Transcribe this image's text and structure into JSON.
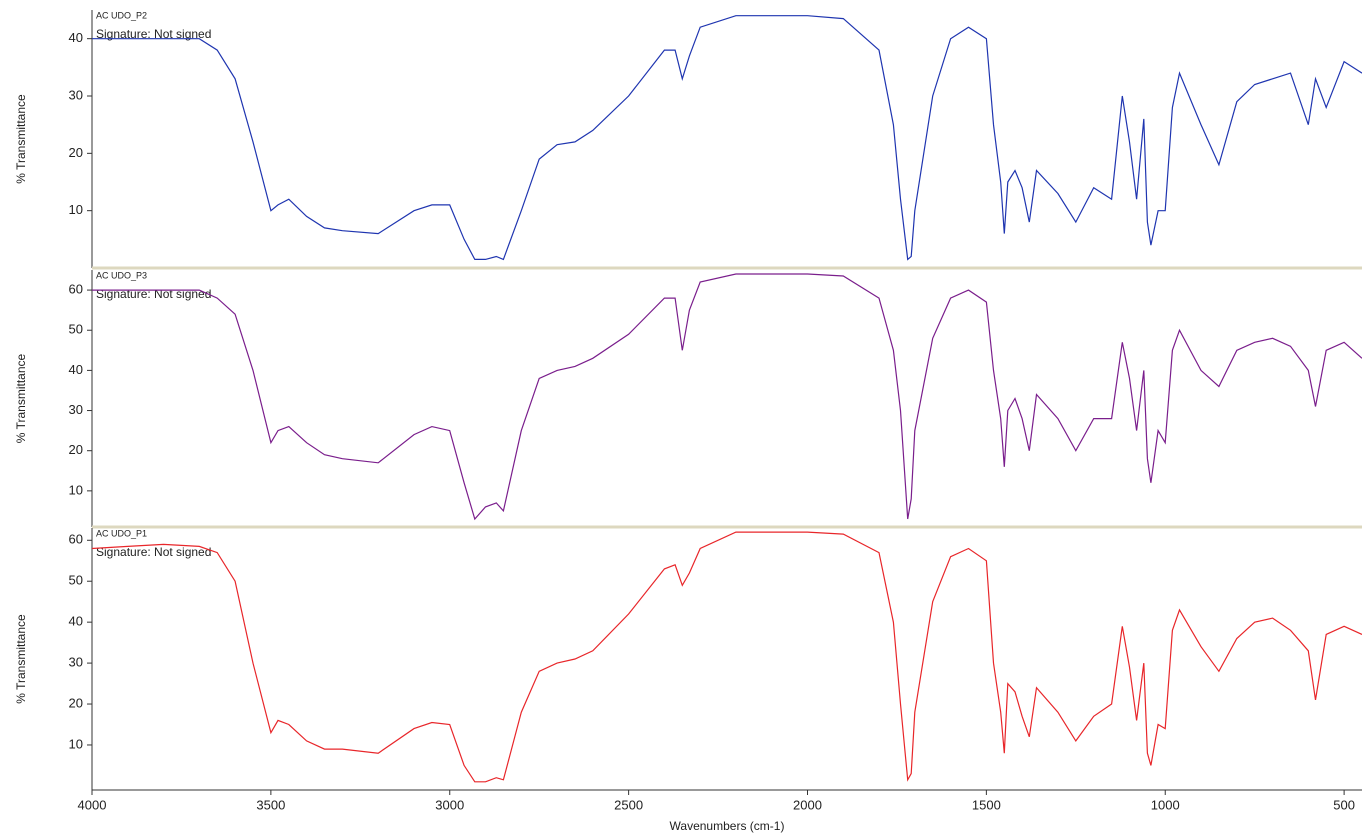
{
  "chart_data": [
    {
      "type": "line",
      "series": [
        {
          "name": "AC UDO_P2",
          "color": "#1f35b0",
          "values": [
            40,
            40,
            40,
            40,
            38,
            33,
            22,
            10,
            11,
            12,
            9,
            7,
            6.5,
            6,
            10,
            11,
            11,
            5,
            1.5,
            1.5,
            2,
            1.5,
            10,
            19,
            21.5,
            22,
            24,
            30,
            38,
            38,
            33,
            37,
            42,
            44,
            44,
            44,
            43.5,
            38,
            25,
            12,
            1.5,
            2,
            10,
            30,
            40,
            42,
            40,
            25,
            15,
            6,
            15,
            17,
            14,
            8,
            17,
            13,
            8,
            14,
            12,
            30,
            22,
            12,
            26,
            8,
            4,
            10,
            10,
            28,
            34,
            25,
            18,
            29,
            32,
            33,
            34,
            25,
            33,
            28,
            36,
            34
          ]
        }
      ],
      "annotation": "Signature: Not signed",
      "ylabel": "% Transmittance",
      "x": [
        4000,
        3900,
        3800,
        3700,
        3650,
        3600,
        3550,
        3500,
        3480,
        3450,
        3400,
        3350,
        3300,
        3200,
        3100,
        3050,
        3000,
        2960,
        2930,
        2900,
        2870,
        2850,
        2800,
        2750,
        2700,
        2650,
        2600,
        2500,
        2400,
        2370,
        2350,
        2330,
        2300,
        2200,
        2100,
        2000,
        1900,
        1800,
        1760,
        1740,
        1720,
        1710,
        1700,
        1650,
        1600,
        1550,
        1500,
        1480,
        1460,
        1450,
        1440,
        1420,
        1400,
        1380,
        1360,
        1300,
        1250,
        1200,
        1150,
        1120,
        1100,
        1080,
        1060,
        1050,
        1040,
        1020,
        1000,
        980,
        960,
        900,
        850,
        800,
        750,
        700,
        650,
        600,
        580,
        550,
        500,
        450
      ],
      "xlim": [
        4000,
        450
      ],
      "ylim": [
        0,
        45
      ],
      "yticks": [
        10,
        20,
        30,
        40
      ]
    },
    {
      "type": "line",
      "series": [
        {
          "name": "AC UDO_P3",
          "color": "#7a1e8c",
          "values": [
            60,
            60,
            60,
            60,
            58,
            54,
            40,
            22,
            25,
            26,
            22,
            19,
            18,
            17,
            24,
            26,
            25,
            12,
            3,
            6,
            7,
            5,
            25,
            38,
            40,
            41,
            43,
            49,
            58,
            58,
            45,
            55,
            62,
            64,
            64,
            64,
            63.5,
            58,
            45,
            30,
            3,
            8,
            25,
            48,
            58,
            60,
            57,
            40,
            28,
            16,
            30,
            33,
            28,
            20,
            34,
            28,
            20,
            28,
            28,
            47,
            38,
            25,
            40,
            18,
            12,
            25,
            22,
            45,
            50,
            40,
            36,
            45,
            47,
            48,
            46,
            40,
            31,
            45,
            47,
            43
          ]
        }
      ],
      "annotation": "Signature: Not signed",
      "ylabel": "% Transmittance",
      "x": [
        4000,
        3900,
        3800,
        3700,
        3650,
        3600,
        3550,
        3500,
        3480,
        3450,
        3400,
        3350,
        3300,
        3200,
        3100,
        3050,
        3000,
        2960,
        2930,
        2900,
        2870,
        2850,
        2800,
        2750,
        2700,
        2650,
        2600,
        2500,
        2400,
        2370,
        2350,
        2330,
        2300,
        2200,
        2100,
        2000,
        1900,
        1800,
        1760,
        1740,
        1720,
        1710,
        1700,
        1650,
        1600,
        1550,
        1500,
        1480,
        1460,
        1450,
        1440,
        1420,
        1400,
        1380,
        1360,
        1300,
        1250,
        1200,
        1150,
        1120,
        1100,
        1080,
        1060,
        1050,
        1040,
        1020,
        1000,
        980,
        960,
        900,
        850,
        800,
        750,
        700,
        650,
        600,
        580,
        550,
        500,
        450
      ],
      "xlim": [
        4000,
        450
      ],
      "ylim": [
        1,
        65
      ],
      "yticks": [
        10,
        20,
        30,
        40,
        50,
        60
      ]
    },
    {
      "type": "line",
      "series": [
        {
          "name": "AC UDO_P1",
          "color": "#e8262a",
          "values": [
            58,
            58.5,
            59,
            58.5,
            57,
            50,
            30,
            13,
            16,
            15,
            11,
            9,
            9,
            8,
            14,
            15.5,
            15,
            5,
            1,
            1,
            2,
            1.5,
            18,
            28,
            30,
            31,
            33,
            42,
            53,
            54,
            49,
            52,
            58,
            62,
            62,
            62,
            61.5,
            57,
            40,
            20,
            1.5,
            3,
            18,
            45,
            56,
            58,
            55,
            30,
            18,
            8,
            25,
            23,
            17,
            12,
            24,
            18,
            11,
            17,
            20,
            39,
            29,
            16,
            30,
            8,
            5,
            15,
            14,
            38,
            43,
            34,
            28,
            36,
            40,
            41,
            38,
            33,
            21,
            37,
            39,
            37
          ]
        }
      ],
      "annotation": "Signature: Not signed",
      "ylabel": "% Transmittance",
      "xlabel": "Wavenumbers (cm-1)",
      "x": [
        4000,
        3900,
        3800,
        3700,
        3650,
        3600,
        3550,
        3500,
        3480,
        3450,
        3400,
        3350,
        3300,
        3200,
        3100,
        3050,
        3000,
        2960,
        2930,
        2900,
        2870,
        2850,
        2800,
        2750,
        2700,
        2650,
        2600,
        2500,
        2400,
        2370,
        2350,
        2330,
        2300,
        2200,
        2100,
        2000,
        1900,
        1800,
        1760,
        1740,
        1720,
        1710,
        1700,
        1650,
        1600,
        1550,
        1500,
        1480,
        1460,
        1450,
        1440,
        1420,
        1400,
        1380,
        1360,
        1300,
        1250,
        1200,
        1150,
        1120,
        1100,
        1080,
        1060,
        1050,
        1040,
        1020,
        1000,
        980,
        960,
        900,
        850,
        800,
        750,
        700,
        650,
        600,
        580,
        550,
        500,
        450
      ],
      "xlim": [
        4000,
        450
      ],
      "ylim": [
        -1,
        63
      ],
      "yticks": [
        10,
        20,
        30,
        40,
        50,
        60
      ],
      "xticks": [
        4000,
        3500,
        3000,
        2500,
        2000,
        1500,
        1000,
        500
      ]
    }
  ]
}
